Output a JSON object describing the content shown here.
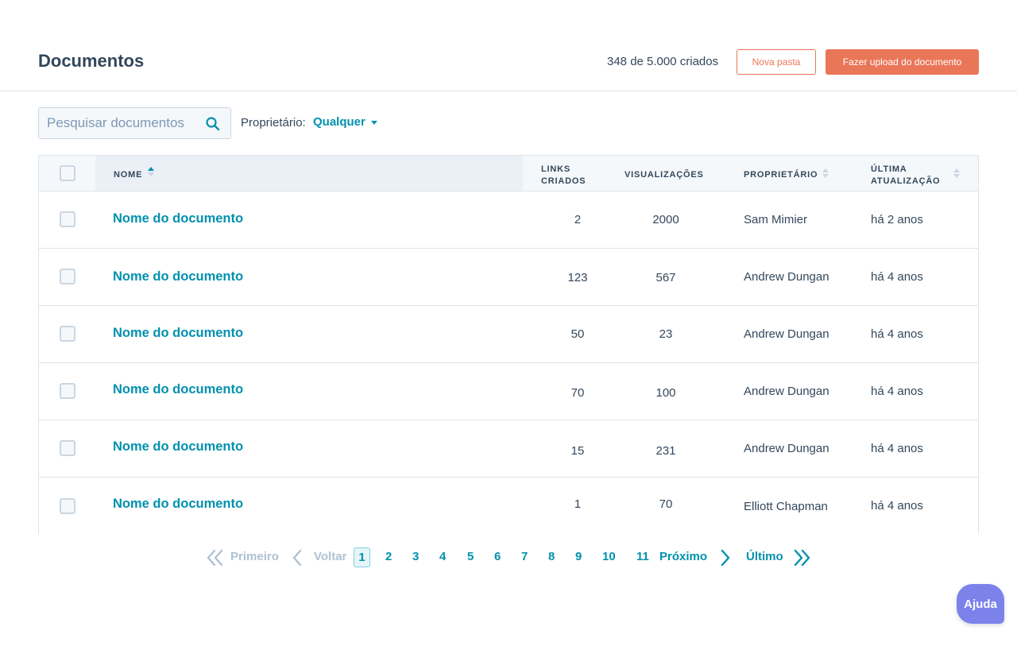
{
  "header": {
    "title": "Documentos",
    "count_text": "348 de 5.000 criados",
    "new_folder_label": "Nova pasta",
    "upload_label": "Fazer upload do documento"
  },
  "filters": {
    "search_placeholder": "Pesquisar documentos",
    "search_icon": "search-icon",
    "owner_label": "Proprietário:",
    "owner_value": "Qualquer"
  },
  "table": {
    "columns": {
      "name": "NOME",
      "links_line1": "LINKS",
      "links_line2": "CRIADOS",
      "views": "VISUALIZAÇÕES",
      "owner": "PROPRIETÁRIO",
      "updated_line1": "ÚLTIMA",
      "updated_line2": "ATUALIZAÇÃO"
    },
    "rows": [
      {
        "name": "Nome do documento",
        "links": "2",
        "views": "2000",
        "owner": "Sam Mimier",
        "updated": "há 2 anos"
      },
      {
        "name": "Nome do documento",
        "links": "123",
        "views": "567",
        "owner": "Andrew Dungan",
        "updated": "há 4 anos"
      },
      {
        "name": "Nome do documento",
        "links": "50",
        "views": "23",
        "owner": "Andrew Dungan",
        "updated": "há 4 anos"
      },
      {
        "name": "Nome do documento",
        "links": "70",
        "views": "100",
        "owner": "Andrew Dungan",
        "updated": "há 4 anos"
      },
      {
        "name": "Nome do documento",
        "links": "15",
        "views": "231",
        "owner": "Andrew Dungan",
        "updated": "há 4 anos"
      },
      {
        "name": "Nome do documento",
        "links": "1",
        "views": "70",
        "owner": "Elliott Chapman",
        "updated": "há 4 anos"
      }
    ]
  },
  "pagination": {
    "first": "Primeiro",
    "prev": "Voltar",
    "current": "1",
    "pages": [
      "2",
      "3",
      "4",
      "5",
      "6",
      "7",
      "8",
      "9",
      "10",
      "11"
    ],
    "next": "Próximo",
    "last": "Último"
  },
  "help": {
    "label": "Ajuda"
  },
  "colors": {
    "accent": "#0091ae",
    "brand": "#ea7658",
    "help": "#7b83eb",
    "text": "#33475b"
  }
}
